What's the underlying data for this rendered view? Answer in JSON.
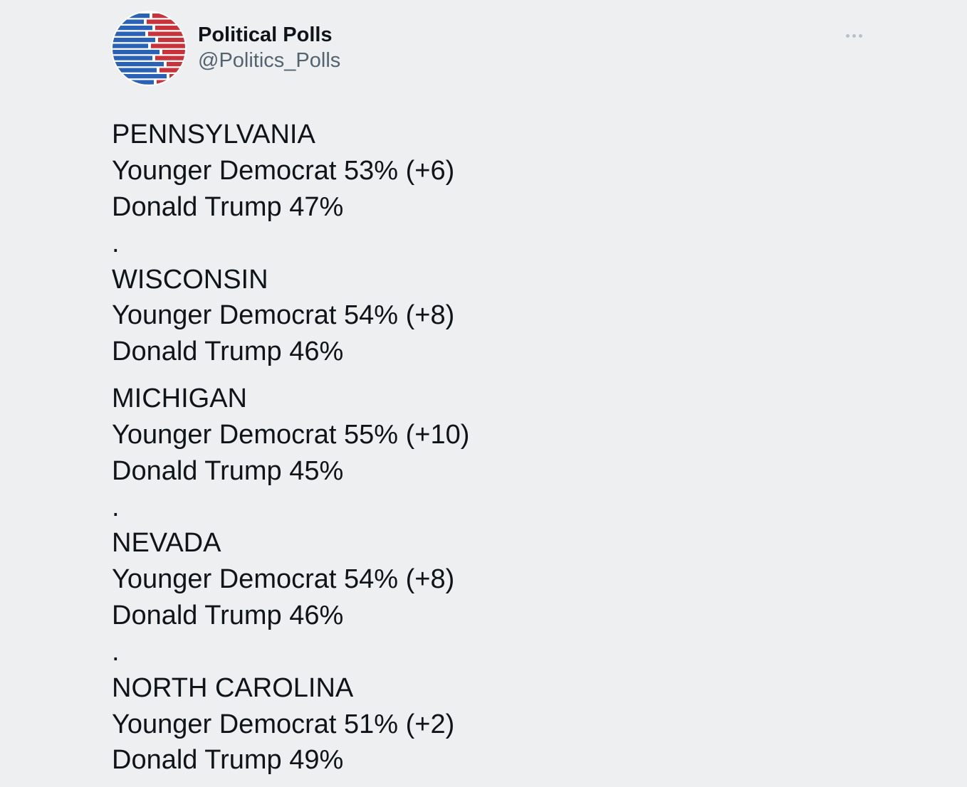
{
  "author": {
    "display_name": "Political Polls",
    "handle": "@Politics_Polls",
    "avatar_icon": "political-polls-logo-icon",
    "colors": {
      "blue": "#2a63b5",
      "red": "#c8323a"
    }
  },
  "more_icon": "more-options-icon",
  "tweet": {
    "lines": [
      "PENNSYLVANIA",
      "Younger Democrat 53% (+6)",
      "Donald Trump 47%",
      ".",
      "WISCONSIN",
      "Younger Democrat 54% (+8)",
      "Donald Trump 46%",
      "MICHIGAN",
      "Younger Democrat 55% (+10)",
      "Donald Trump 45%",
      ".",
      "NEVADA",
      "Younger Democrat 54% (+8)",
      "Donald Trump 46%",
      ".",
      "NORTH CAROLINA",
      "Younger Democrat 51% (+2)",
      "Donald Trump 49%"
    ]
  },
  "colors": {
    "background": "#eeeff1",
    "text": "#0f1419",
    "secondary_text": "#536471",
    "link": "#1d9bf0"
  }
}
